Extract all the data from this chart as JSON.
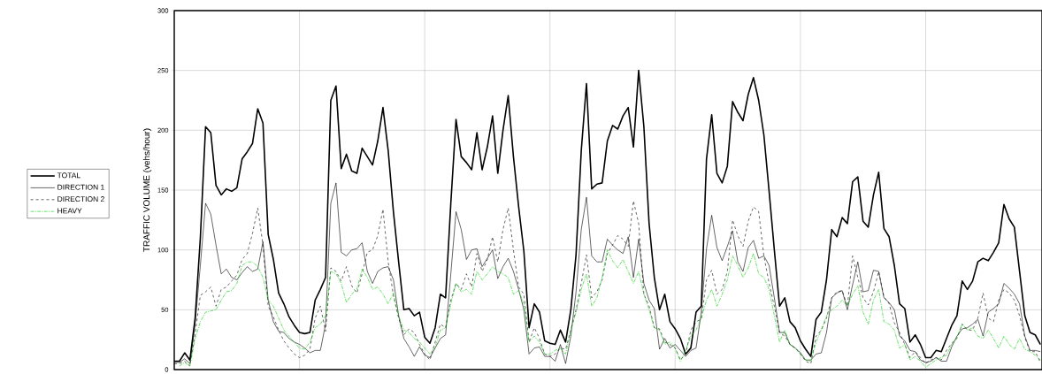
{
  "chart_data": {
    "type": "line",
    "ylabel": "TRAFFIC VOLUME (vehs/hour)",
    "categories": [
      null,
      null,
      null,
      null,
      null,
      null,
      null,
      null,
      null,
      null,
      null,
      null,
      null,
      null,
      null,
      null,
      null,
      null,
      null,
      null,
      null,
      null,
      null,
      null,
      null,
      null,
      null,
      null,
      null,
      null,
      null,
      null,
      null,
      null,
      null,
      null,
      null,
      null,
      null,
      null,
      null,
      null,
      null,
      null,
      null,
      null,
      null,
      null,
      null,
      null,
      null,
      null,
      null,
      null,
      null,
      null,
      null,
      null,
      null,
      null,
      null,
      null,
      null,
      null,
      null,
      null,
      null,
      null,
      null,
      null,
      null,
      null,
      null,
      null,
      null,
      null,
      null,
      null,
      null,
      null,
      null,
      null,
      null,
      null,
      null,
      null,
      null,
      null,
      null,
      null,
      null,
      null,
      null,
      null,
      null,
      null,
      null,
      null,
      null,
      null,
      null,
      null,
      null,
      null,
      null,
      null,
      null,
      null,
      null,
      null,
      null,
      null,
      null,
      null,
      null,
      null,
      null,
      null,
      null,
      null,
      null,
      null,
      null,
      null,
      null,
      null,
      null,
      null,
      null,
      null,
      null,
      null,
      null,
      null,
      null,
      null,
      null,
      null,
      null,
      null,
      null,
      null,
      null,
      null,
      null,
      null,
      null,
      null,
      null,
      null,
      null,
      null,
      null,
      null,
      null,
      null,
      null,
      null,
      null,
      null,
      null,
      null,
      null,
      null,
      null,
      null,
      null
    ],
    "series": [
      {
        "name": "TOTAL",
        "color": "#000000",
        "line_style": "solid",
        "values": [
          7,
          7,
          14,
          8,
          43,
          110,
          203,
          198,
          154,
          146,
          151,
          149,
          152,
          176,
          182,
          189,
          218,
          206,
          113,
          92,
          64,
          55,
          44,
          37,
          31,
          30,
          31,
          58,
          67,
          77,
          225,
          237,
          168,
          180,
          166,
          164,
          185,
          178,
          171,
          191,
          219,
          183,
          132,
          90,
          50,
          51,
          45,
          48,
          27,
          22,
          35,
          63,
          60,
          139,
          209,
          178,
          173,
          167,
          198,
          167,
          186,
          212,
          164,
          200,
          229,
          178,
          136,
          99,
          35,
          55,
          48,
          24,
          22,
          21,
          33,
          23,
          50,
          96,
          183,
          239,
          151,
          155,
          156,
          191,
          204,
          201,
          212,
          219,
          186,
          250,
          203,
          122,
          77,
          50,
          63,
          40,
          34,
          26,
          13,
          18,
          48,
          53,
          176,
          213,
          164,
          156,
          170,
          224,
          215,
          208,
          230,
          244,
          225,
          196,
          149,
          100,
          53,
          60,
          40,
          35,
          24,
          17,
          11,
          42,
          48,
          75,
          117,
          111,
          127,
          122,
          157,
          161,
          124,
          119,
          146,
          165,
          118,
          111,
          87,
          55,
          51,
          23,
          29,
          21,
          10,
          10,
          16,
          15,
          26,
          37,
          45,
          74,
          67,
          74,
          90,
          93,
          91,
          98,
          106,
          138,
          126,
          119,
          82,
          45,
          31,
          29,
          21
        ]
      },
      {
        "name": "DIRECTION 1",
        "color": "#000000",
        "line_style": "solid",
        "values": [
          6,
          6,
          9,
          5,
          38,
          87,
          139,
          130,
          104,
          80,
          84,
          77,
          75,
          81,
          86,
          82,
          84,
          107,
          58,
          40,
          32,
          31,
          26,
          23,
          21,
          18,
          14,
          16,
          16,
          38,
          139,
          156,
          98,
          95,
          100,
          101,
          106,
          82,
          72,
          82,
          85,
          86,
          75,
          45,
          26,
          19,
          11,
          19,
          12,
          10,
          18,
          26,
          29,
          80,
          132,
          117,
          92,
          100,
          101,
          86,
          93,
          100,
          76,
          86,
          93,
          82,
          67,
          50,
          13,
          18,
          19,
          11,
          11,
          7,
          21,
          5,
          28,
          65,
          117,
          144,
          95,
          90,
          90,
          109,
          104,
          100,
          97,
          111,
          77,
          109,
          72,
          58,
          51,
          17,
          26,
          18,
          21,
          16,
          11,
          16,
          18,
          48,
          101,
          129,
          102,
          91,
          103,
          116,
          90,
          82,
          102,
          108,
          93,
          95,
          87,
          60,
          31,
          31,
          21,
          18,
          14,
          8,
          8,
          13,
          14,
          31,
          60,
          64,
          66,
          50,
          71,
          90,
          65,
          66,
          83,
          82,
          60,
          56,
          50,
          28,
          24,
          16,
          15,
          8,
          6,
          7,
          10,
          7,
          7,
          19,
          28,
          34,
          35,
          38,
          42,
          28,
          48,
          51,
          55,
          72,
          68,
          63,
          55,
          28,
          16,
          16,
          15
        ]
      },
      {
        "name": "DIRECTION 2",
        "color": "#000000",
        "line_style": "dashed",
        "values": [
          5,
          5,
          7,
          3,
          30,
          62,
          65,
          69,
          53,
          67,
          69,
          74,
          79,
          92,
          97,
          114,
          135,
          104,
          53,
          44,
          33,
          24,
          18,
          13,
          10,
          12,
          17,
          43,
          53,
          32,
          85,
          82,
          74,
          86,
          70,
          64,
          80,
          98,
          100,
          112,
          134,
          90,
          62,
          43,
          29,
          34,
          31,
          21,
          13,
          8,
          23,
          38,
          35,
          58,
          72,
          67,
          80,
          69,
          97,
          82,
          92,
          111,
          90,
          117,
          135,
          100,
          69,
          63,
          23,
          35,
          26,
          13,
          11,
          13,
          18,
          17,
          33,
          50,
          72,
          96,
          60,
          65,
          75,
          97,
          104,
          112,
          109,
          103,
          141,
          122,
          63,
          53,
          35,
          34,
          23,
          21,
          18,
          8,
          13,
          33,
          40,
          42,
          75,
          83,
          63,
          67,
          82,
          125,
          112,
          103,
          124,
          136,
          132,
          95,
          72,
          53,
          31,
          28,
          21,
          18,
          13,
          7,
          5,
          28,
          33,
          43,
          60,
          65,
          66,
          53,
          95,
          77,
          60,
          54,
          65,
          82,
          61,
          55,
          39,
          31,
          21,
          10,
          15,
          10,
          5,
          8,
          10,
          8,
          16,
          22,
          26,
          38,
          33,
          33,
          43,
          64,
          43,
          40,
          58,
          67,
          64,
          58,
          45,
          27,
          15,
          15,
          6
        ]
      },
      {
        "name": "HEAVY",
        "color": "#00cc00",
        "line_style": "dashdot",
        "values": [
          null,
          3,
          6,
          3,
          26,
          40,
          48,
          49,
          50,
          58,
          65,
          66,
          72,
          87,
          90,
          90,
          86,
          77,
          58,
          53,
          43,
          33,
          28,
          23,
          18,
          17,
          23,
          35,
          38,
          45,
          82,
          80,
          72,
          56,
          63,
          67,
          84,
          77,
          67,
          69,
          63,
          55,
          64,
          45,
          33,
          31,
          26,
          23,
          18,
          13,
          19,
          33,
          35,
          55,
          72,
          65,
          67,
          63,
          82,
          75,
          80,
          86,
          82,
          80,
          77,
          63,
          66,
          55,
          23,
          28,
          23,
          13,
          13,
          16,
          18,
          13,
          33,
          48,
          67,
          80,
          53,
          60,
          77,
          100,
          91,
          85,
          92,
          82,
          72,
          82,
          63,
          50,
          35,
          33,
          21,
          23,
          18,
          7,
          16,
          28,
          33,
          43,
          58,
          67,
          53,
          63,
          75,
          95,
          87,
          77,
          85,
          97,
          80,
          77,
          67,
          45,
          23,
          33,
          21,
          18,
          13,
          8,
          7,
          23,
          33,
          45,
          50,
          53,
          58,
          53,
          63,
          70,
          48,
          38,
          58,
          67,
          40,
          38,
          33,
          18,
          21,
          8,
          11,
          7,
          2,
          5,
          8,
          10,
          12,
          21,
          27,
          38,
          33,
          35,
          28,
          26,
          33,
          26,
          18,
          28,
          21,
          17,
          26,
          17,
          15,
          12,
          8
        ]
      }
    ],
    "ylim": [
      0,
      300
    ],
    "yticks": [
      0,
      50,
      100,
      150,
      200,
      250,
      300
    ],
    "grid": true,
    "legend": "left",
    "marker": "none",
    "tick_labels": "y"
  }
}
